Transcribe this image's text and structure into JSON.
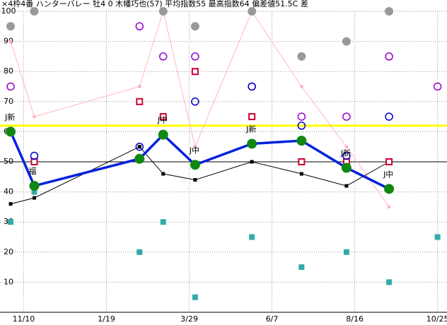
{
  "chart_data": {
    "type": "line",
    "title": "×4枠4番 ハンターバレー 牡4 0 木幡巧也(57) 平均指数55 最高指数64 偏差値51.5C 差",
    "x": [
      -11,
      9,
      98,
      118,
      145,
      193,
      235,
      273,
      309,
      350
    ],
    "xlim": [
      -20,
      358
    ],
    "xticks": [
      {
        "value": 0,
        "label": "11/10"
      },
      {
        "value": 70,
        "label": "1/19"
      },
      {
        "value": 140,
        "label": "3/29"
      },
      {
        "value": 210,
        "label": "6/7"
      },
      {
        "value": 280,
        "label": "8/16"
      },
      {
        "value": 350,
        "label": "10/25"
      }
    ],
    "ylim": [
      0,
      100
    ],
    "yticks": [
      10,
      20,
      30,
      40,
      50,
      60,
      70,
      80,
      90,
      100
    ],
    "grid": true,
    "reference_lines": [
      {
        "value": 62,
        "color": "#ffff00"
      },
      {
        "value": 50,
        "color": "#000000"
      }
    ],
    "series": [
      {
        "color": "#ffb6c1",
        "marker": "dot",
        "line": true,
        "values": [
          90,
          65,
          75,
          100,
          55,
          100,
          75,
          55,
          35,
          null
        ]
      },
      {
        "color": "#000000",
        "marker": "square",
        "line": true,
        "values": [
          36,
          38,
          55,
          46,
          44,
          50,
          46,
          42,
          50,
          null
        ]
      },
      {
        "color": "#999999",
        "marker": "disc",
        "line": false,
        "values": [
          95,
          100,
          null,
          100,
          95,
          100,
          85,
          90,
          100,
          null
        ]
      },
      {
        "color": "#9900cc",
        "marker": "ring",
        "line": false,
        "values": [
          75,
          null,
          95,
          85,
          85,
          75,
          65,
          65,
          85,
          75
        ]
      },
      {
        "color": "#cc0033",
        "marker": "box",
        "line": false,
        "values": [
          null,
          50,
          70,
          65,
          80,
          65,
          50,
          50,
          50,
          null
        ]
      },
      {
        "color": "#0000cc",
        "marker": "ring",
        "line": false,
        "values": [
          null,
          52,
          55,
          null,
          70,
          75,
          62,
          52,
          65,
          null
        ]
      },
      {
        "color": "#33aaaa",
        "marker": "square",
        "line": false,
        "values": [
          30,
          40,
          20,
          30,
          5,
          25,
          15,
          20,
          10,
          25
        ]
      },
      {
        "color": "#0022dd",
        "marker": "big",
        "line": true,
        "values": [
          60,
          42,
          51,
          59,
          49,
          56,
          57,
          48,
          41,
          null
        ],
        "point_labels": [
          "J新",
          "福",
          null,
          "J中",
          "J中",
          "J新",
          null,
          "J新",
          "J中",
          null
        ]
      }
    ]
  }
}
